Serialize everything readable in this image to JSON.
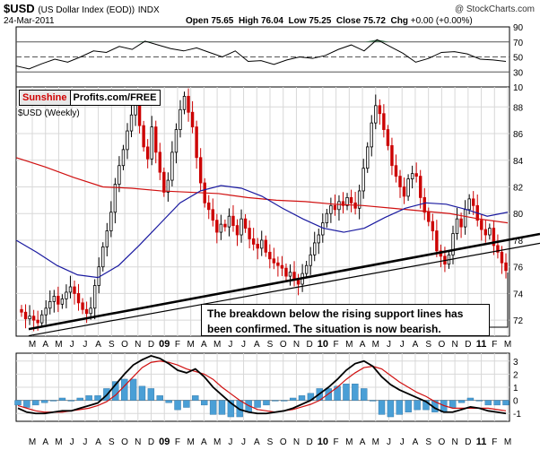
{
  "header": {
    "symbol": "$USD",
    "name": "(US Dollar Index (EOD))",
    "exchange": "INDX",
    "date": "24-Mar-2011",
    "copyright": "@ StockCharts.com",
    "open_label": "Open",
    "open": "75.65",
    "high_label": "High",
    "high": "76.04",
    "low_label": "Low",
    "low": "75.25",
    "close_label": "Close",
    "close": "75.72",
    "chg_label": "Chg",
    "chg": "+0.00 (+0.00%)"
  },
  "branding": {
    "sunshine": "Sunshine",
    "profits": "Profits.com/FREE"
  },
  "annotation": {
    "line1": "The breakdown below the rising support lines has",
    "line2": "been confirmed. The situation is now bearish."
  },
  "colors": {
    "bull": "#000000",
    "bear": "#cc0000",
    "ma50": "#1a1aa0",
    "ma200": "#d01010",
    "macd_hist": "#4a9fd6",
    "rsi_fill": "#4a7a5a",
    "support": "#000000"
  },
  "chart_data": [
    {
      "type": "line",
      "panel": "RSI",
      "yticks": [
        90,
        70,
        50,
        30,
        10
      ],
      "ylim": [
        10,
        90
      ],
      "ref_lines": [
        70,
        50,
        30
      ],
      "x": [
        0,
        4,
        8,
        12,
        16,
        20,
        24,
        28,
        32,
        36,
        40,
        44,
        48,
        52,
        56,
        60,
        64,
        68,
        72,
        76,
        80,
        84,
        88,
        92,
        96,
        100,
        104,
        108,
        112,
        116,
        120,
        124,
        128,
        132,
        136,
        140,
        144,
        148,
        152
      ],
      "values": [
        38,
        34,
        41,
        47,
        43,
        50,
        58,
        56,
        64,
        60,
        71,
        66,
        61,
        58,
        62,
        56,
        50,
        58,
        44,
        45,
        40,
        46,
        50,
        48,
        52,
        60,
        66,
        58,
        73,
        64,
        55,
        43,
        48,
        56,
        57,
        54,
        47,
        46,
        44
      ]
    },
    {
      "type": "candlestick",
      "panel": "price",
      "title": "$USD (Weekly)",
      "yticks": [
        72,
        74,
        76,
        78,
        80,
        82,
        84,
        86,
        88
      ],
      "ylim": [
        70.8,
        89.5
      ],
      "xticks": [
        "M",
        "A",
        "M",
        "J",
        "J",
        "A",
        "S",
        "O",
        "N",
        "D",
        "09",
        "F",
        "M",
        "A",
        "M",
        "J",
        "J",
        "A",
        "S",
        "O",
        "N",
        "D",
        "10",
        "F",
        "M",
        "A",
        "M",
        "J",
        "J",
        "A",
        "S",
        "O",
        "N",
        "D",
        "11",
        "F",
        "M"
      ],
      "close": [
        72.6,
        72.1,
        72.3,
        72.0,
        71.8,
        72.4,
        72.9,
        73.4,
        73.8,
        73.2,
        73.6,
        74.1,
        74.5,
        74.0,
        73.3,
        72.8,
        72.5,
        72.9,
        74.6,
        76.0,
        77.5,
        78.7,
        80.1,
        82.2,
        83.6,
        84.8,
        86.2,
        87.4,
        88.2,
        86.6,
        85.0,
        84.1,
        86.5,
        84.6,
        83.1,
        81.6,
        82.5,
        84.6,
        86.3,
        87.8,
        88.8,
        87.6,
        86.5,
        84.2,
        82.3,
        80.8,
        80.3,
        79.5,
        78.6,
        79.2,
        79.0,
        79.8,
        79.1,
        78.4,
        79.6,
        78.9,
        78.1,
        77.7,
        77.4,
        78.0,
        77.1,
        76.6,
        76.3,
        76.1,
        75.9,
        75.3,
        75.6,
        75.0,
        74.7,
        75.5,
        76.1,
        76.9,
        77.8,
        78.4,
        79.3,
        80.0,
        80.6,
        80.3,
        80.9,
        80.6,
        81.2,
        80.8,
        80.4,
        81.7,
        83.4,
        85.0,
        86.8,
        88.1,
        87.5,
        86.3,
        85.1,
        83.6,
        82.8,
        82.0,
        81.3,
        82.6,
        83.0,
        82.8,
        81.2,
        80.1,
        79.4,
        78.7,
        77.2,
        76.8,
        76.2,
        76.9,
        78.5,
        79.6,
        79.0,
        80.3,
        81.1,
        80.6,
        79.5,
        78.8,
        78.4,
        78.9,
        77.6,
        77.1,
        76.3,
        75.72
      ],
      "ma50": [
        78,
        77.1,
        76.1,
        75.4,
        75.2,
        76.1,
        77.6,
        79.2,
        80.8,
        81.7,
        82.1,
        81.9,
        81.3,
        80.4,
        79.6,
        78.9,
        78.6,
        78.9,
        79.7,
        80.4,
        80.8,
        80.7,
        80.3,
        79.8,
        80.1
      ],
      "ma200": [
        84.2,
        83.5,
        82.7,
        82.0,
        81.9,
        81.7,
        81.6,
        81.5,
        81.2,
        81.0,
        80.9,
        80.7,
        80.6,
        80.4,
        80.2,
        80.0,
        79.6,
        79.3
      ],
      "support_line_1": {
        "start": 71.6,
        "end": 78.2
      },
      "support_line_2": {
        "start": 71.1,
        "end": 77.5
      }
    },
    {
      "type": "line",
      "panel": "MACD",
      "yticks": [
        3,
        2,
        1,
        0,
        -1
      ],
      "ylim": [
        -1.6,
        3.6
      ],
      "macd": [
        -0.6,
        -0.9,
        -1.0,
        -1.0,
        -0.9,
        -0.8,
        -0.8,
        -0.6,
        -0.4,
        -0.2,
        0.4,
        1.2,
        2.0,
        2.7,
        3.1,
        3.4,
        3.2,
        2.8,
        2.3,
        2.1,
        2.4,
        1.8,
        1.0,
        0.4,
        -0.2,
        -0.7,
        -0.9,
        -1.0,
        -1.0,
        -0.9,
        -0.8,
        -0.6,
        -0.3,
        0.0,
        0.5,
        1.0,
        1.6,
        2.3,
        2.8,
        3.0,
        2.6,
        1.8,
        1.2,
        0.8,
        0.5,
        0.2,
        -0.1,
        -0.6,
        -0.9,
        -0.9,
        -0.7,
        -0.5,
        -0.6,
        -0.8,
        -0.9,
        -1.0
      ],
      "signal": [
        -0.4,
        -0.6,
        -0.8,
        -0.9,
        -0.9,
        -0.9,
        -0.8,
        -0.7,
        -0.6,
        -0.4,
        -0.1,
        0.4,
        1.1,
        1.8,
        2.5,
        2.9,
        3.0,
        2.9,
        2.7,
        2.4,
        2.2,
        2.0,
        1.6,
        1.0,
        0.5,
        0.0,
        -0.4,
        -0.7,
        -0.8,
        -0.9,
        -0.8,
        -0.7,
        -0.5,
        -0.3,
        0.0,
        0.5,
        1.0,
        1.6,
        2.1,
        2.5,
        2.6,
        2.4,
        1.9,
        1.4,
        1.0,
        0.6,
        0.3,
        -0.1,
        -0.4,
        -0.6,
        -0.6,
        -0.6,
        -0.6,
        -0.6,
        -0.7,
        -0.8
      ]
    }
  ]
}
